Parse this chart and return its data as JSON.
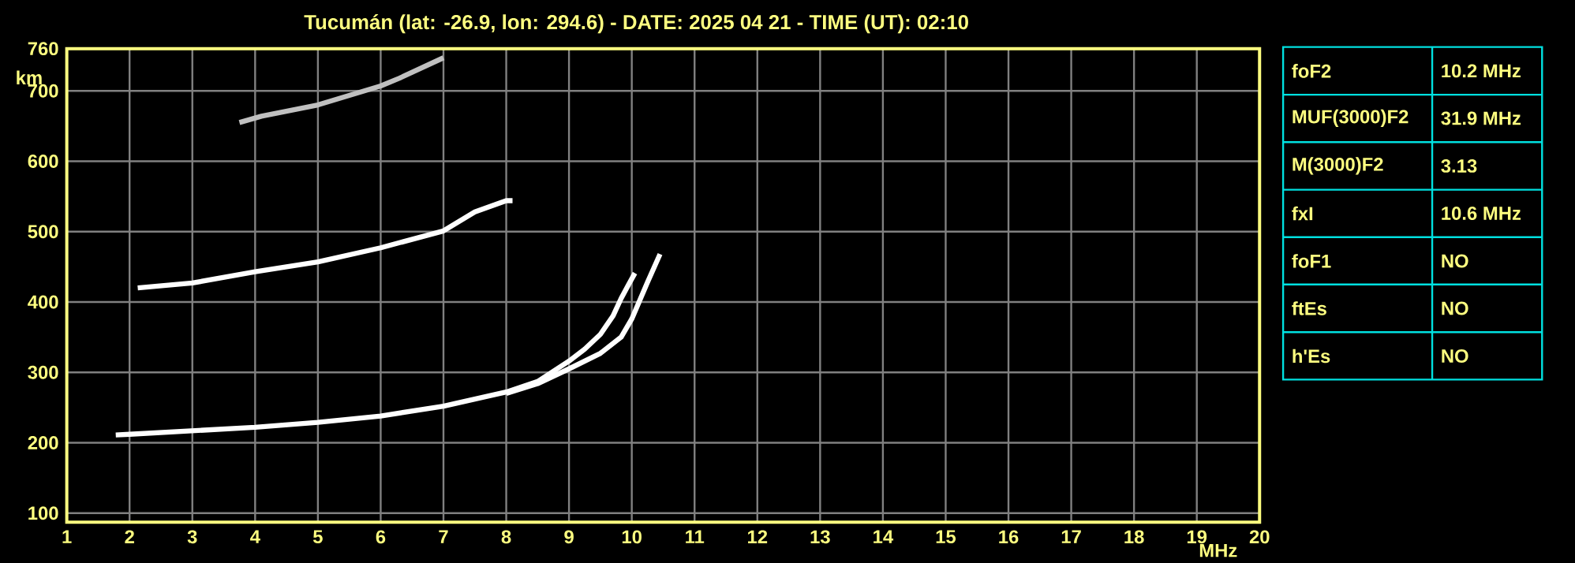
{
  "chart_data": {
    "type": "line",
    "title": "Tucumán (lat: -26.9, lon: 294.6) - DATE: 2025 04 21 - TIME (UT): 02:10",
    "xlabel": "MHz",
    "ylabel": "km",
    "xlim": [
      1,
      20
    ],
    "ylim": [
      87,
      760
    ],
    "xticks": [
      1,
      2,
      3,
      4,
      5,
      6,
      7,
      8,
      9,
      10,
      11,
      12,
      13,
      14,
      15,
      16,
      17,
      18,
      19,
      20
    ],
    "yticks": [
      100,
      200,
      300,
      400,
      500,
      600,
      700,
      760
    ],
    "grid": true,
    "marker": "none",
    "line_style": "solid",
    "series": [
      {
        "color": "#ffffff",
        "x": [
          1.78,
          2,
          3,
          4,
          5,
          6,
          7,
          8,
          8.5,
          9,
          9.25,
          9.5,
          9.7,
          9.83,
          9.95,
          10.05
        ],
        "values": [
          211,
          212,
          217,
          222,
          229,
          238,
          252,
          272,
          287,
          316,
          333,
          354,
          380,
          405,
          425,
          441
        ]
      },
      {
        "color": "#ffffff",
        "x": [
          8,
          8.5,
          9,
          9.5,
          9.83,
          10,
          10.25,
          10.45
        ],
        "values": [
          270,
          284,
          305,
          327,
          350,
          376,
          428,
          468
        ]
      },
      {
        "color": "#ffffff",
        "x": [
          2.13,
          3,
          4,
          5,
          6,
          7,
          7.5,
          8,
          8.1
        ],
        "values": [
          420,
          427,
          443,
          457,
          477,
          501,
          528,
          544,
          544
        ]
      },
      {
        "color": "#c0c0c0",
        "x": [
          3.75,
          4.1,
          5,
          6,
          6.3,
          7
        ],
        "values": [
          655,
          664,
          680,
          707,
          718,
          747
        ]
      }
    ],
    "annotations": [
      "foF2",
      "10.2 MHz",
      "MUF(3000)F2",
      "31.9 MHz",
      "M(3000)F2",
      "3.13",
      "fxI",
      "10.6 MHz",
      "foF1",
      "NO",
      "ftEs",
      "NO",
      "h'Es",
      "NO"
    ]
  }
}
